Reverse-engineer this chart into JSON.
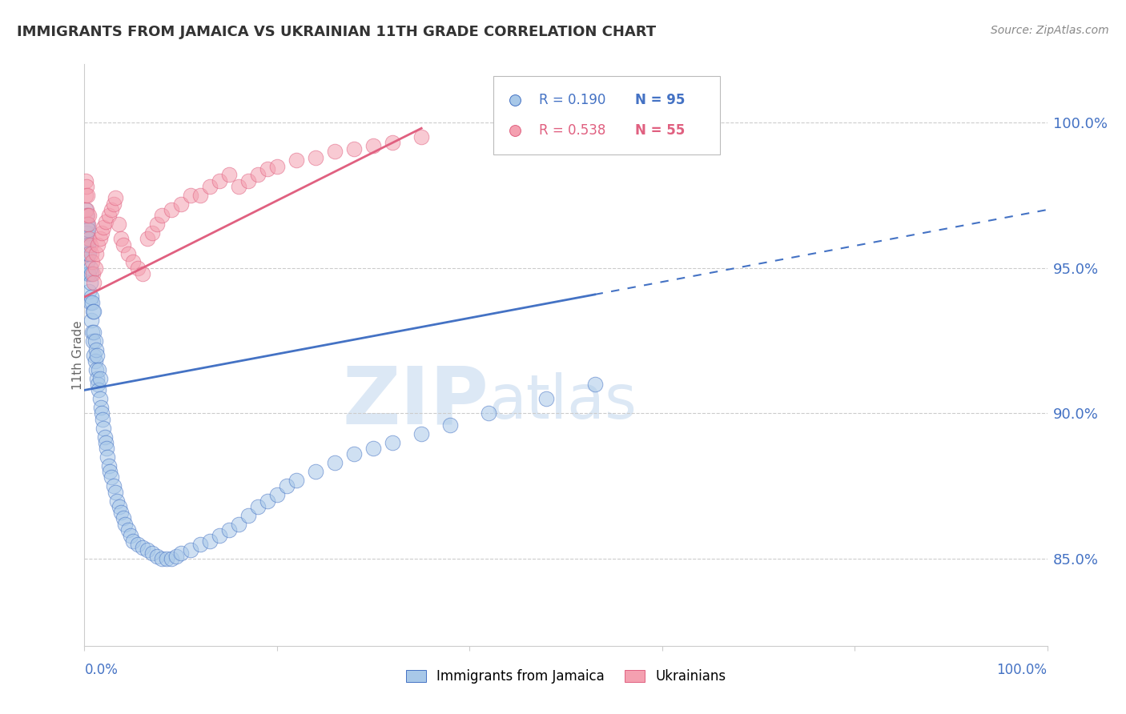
{
  "title": "IMMIGRANTS FROM JAMAICA VS UKRAINIAN 11TH GRADE CORRELATION CHART",
  "source": "Source: ZipAtlas.com",
  "ylabel": "11th Grade",
  "y_tick_labels": [
    "85.0%",
    "90.0%",
    "95.0%",
    "100.0%"
  ],
  "y_tick_values": [
    0.85,
    0.9,
    0.95,
    1.0
  ],
  "x_range": [
    0.0,
    1.0
  ],
  "y_range": [
    0.82,
    1.02
  ],
  "legend_r1": "R = 0.190",
  "legend_n1": "N = 95",
  "legend_r2": "R = 0.538",
  "legend_n2": "N = 55",
  "color_blue": "#a8c8e8",
  "color_pink": "#f4a0b0",
  "color_blue_line": "#4472c4",
  "color_pink_line": "#e06080",
  "color_blue_text": "#4472c4",
  "color_pink_text": "#e06080",
  "watermark_zip": "ZIP",
  "watermark_atlas": "atlas",
  "blue_scatter_x": [
    0.001,
    0.001,
    0.002,
    0.002,
    0.002,
    0.003,
    0.003,
    0.003,
    0.004,
    0.004,
    0.004,
    0.005,
    0.005,
    0.005,
    0.006,
    0.006,
    0.006,
    0.007,
    0.007,
    0.007,
    0.008,
    0.008,
    0.009,
    0.009,
    0.01,
    0.01,
    0.01,
    0.011,
    0.011,
    0.012,
    0.012,
    0.013,
    0.013,
    0.014,
    0.015,
    0.015,
    0.016,
    0.016,
    0.017,
    0.018,
    0.019,
    0.02,
    0.021,
    0.022,
    0.023,
    0.024,
    0.025,
    0.026,
    0.028,
    0.03,
    0.032,
    0.034,
    0.036,
    0.038,
    0.04,
    0.042,
    0.045,
    0.048,
    0.05,
    0.055,
    0.06,
    0.065,
    0.07,
    0.075,
    0.08,
    0.085,
    0.09,
    0.095,
    0.1,
    0.11,
    0.12,
    0.13,
    0.14,
    0.15,
    0.16,
    0.17,
    0.18,
    0.19,
    0.2,
    0.21,
    0.22,
    0.24,
    0.26,
    0.28,
    0.3,
    0.32,
    0.35,
    0.38,
    0.42,
    0.48,
    0.53,
    0.001,
    0.002,
    0.003,
    0.004
  ],
  "blue_scatter_y": [
    0.962,
    0.958,
    0.955,
    0.96,
    0.965,
    0.952,
    0.958,
    0.962,
    0.948,
    0.955,
    0.958,
    0.942,
    0.948,
    0.955,
    0.938,
    0.945,
    0.95,
    0.932,
    0.94,
    0.948,
    0.928,
    0.938,
    0.925,
    0.935,
    0.92,
    0.928,
    0.935,
    0.918,
    0.925,
    0.915,
    0.922,
    0.912,
    0.92,
    0.91,
    0.908,
    0.915,
    0.905,
    0.912,
    0.902,
    0.9,
    0.898,
    0.895,
    0.892,
    0.89,
    0.888,
    0.885,
    0.882,
    0.88,
    0.878,
    0.875,
    0.873,
    0.87,
    0.868,
    0.866,
    0.864,
    0.862,
    0.86,
    0.858,
    0.856,
    0.855,
    0.854,
    0.853,
    0.852,
    0.851,
    0.85,
    0.85,
    0.85,
    0.851,
    0.852,
    0.853,
    0.855,
    0.856,
    0.858,
    0.86,
    0.862,
    0.865,
    0.868,
    0.87,
    0.872,
    0.875,
    0.877,
    0.88,
    0.883,
    0.886,
    0.888,
    0.89,
    0.893,
    0.896,
    0.9,
    0.905,
    0.91,
    0.97,
    0.968,
    0.965,
    0.963
  ],
  "pink_scatter_x": [
    0.001,
    0.001,
    0.002,
    0.002,
    0.003,
    0.003,
    0.004,
    0.005,
    0.005,
    0.006,
    0.007,
    0.008,
    0.009,
    0.01,
    0.011,
    0.012,
    0.014,
    0.016,
    0.018,
    0.02,
    0.022,
    0.025,
    0.028,
    0.03,
    0.032,
    0.035,
    0.038,
    0.04,
    0.045,
    0.05,
    0.055,
    0.06,
    0.065,
    0.07,
    0.075,
    0.08,
    0.09,
    0.1,
    0.11,
    0.12,
    0.13,
    0.14,
    0.15,
    0.16,
    0.17,
    0.18,
    0.19,
    0.2,
    0.22,
    0.24,
    0.26,
    0.28,
    0.3,
    0.32,
    0.35
  ],
  "pink_scatter_y": [
    0.975,
    0.98,
    0.97,
    0.978,
    0.968,
    0.975,
    0.965,
    0.96,
    0.968,
    0.958,
    0.955,
    0.952,
    0.948,
    0.945,
    0.95,
    0.955,
    0.958,
    0.96,
    0.962,
    0.964,
    0.966,
    0.968,
    0.97,
    0.972,
    0.974,
    0.965,
    0.96,
    0.958,
    0.955,
    0.952,
    0.95,
    0.948,
    0.96,
    0.962,
    0.965,
    0.968,
    0.97,
    0.972,
    0.975,
    0.975,
    0.978,
    0.98,
    0.982,
    0.978,
    0.98,
    0.982,
    0.984,
    0.985,
    0.987,
    0.988,
    0.99,
    0.991,
    0.992,
    0.993,
    0.995
  ],
  "blue_trend_x0": 0.0,
  "blue_trend_y0": 0.908,
  "blue_trend_x1": 1.0,
  "blue_trend_y1": 0.97,
  "pink_trend_x0": 0.0,
  "pink_trend_y0": 0.94,
  "pink_trend_x1": 0.35,
  "pink_trend_y1": 0.998
}
